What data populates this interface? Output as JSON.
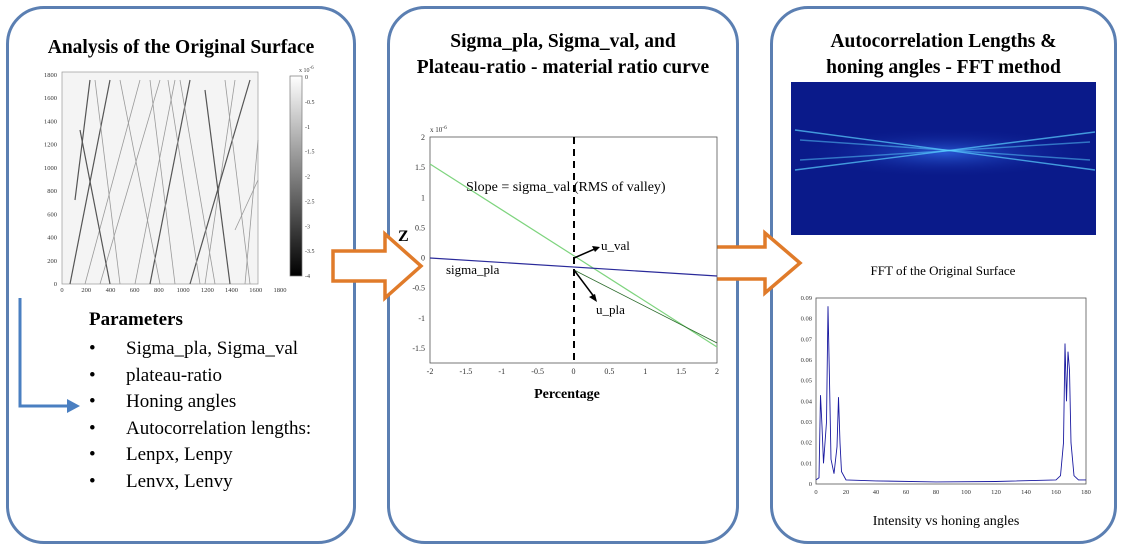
{
  "panel1": {
    "title": "Analysis of the Original Surface",
    "surface_map": {
      "y_ticks": [
        "1800",
        "1600",
        "1400",
        "1200",
        "1000",
        "800",
        "600",
        "400",
        "200",
        "0"
      ],
      "x_ticks": [
        "0",
        "200",
        "400",
        "600",
        "800",
        "1000",
        "1200",
        "1400",
        "1600",
        "1800"
      ],
      "colorbar_exponent": "x 10",
      "colorbar_exponent_power": "-6",
      "colorbar_ticks": [
        "0",
        "-0.5",
        "-1",
        "-1.5",
        "-2",
        "-2.5",
        "-3",
        "-3.5",
        "-4"
      ]
    },
    "parameters_title": "Parameters",
    "parameters": [
      "Sigma_pla, Sigma_val",
      "plateau-ratio",
      "Honing angles",
      "Autocorrelation lengths:",
      "Lenpx, Lenpy",
      "Lenvx, Lenvy"
    ]
  },
  "panel2": {
    "title_line1": "Sigma_pla, Sigma_val, and",
    "title_line2": "Plateau-ratio - material ratio curve",
    "plot": {
      "exponent": "x 10",
      "exponent_power": "-6",
      "y_ticks": [
        "2",
        "1.5",
        "1",
        "0.5",
        "0",
        "-0.5",
        "-1",
        "-1.5"
      ],
      "x_ticks": [
        "-2",
        "-1.5",
        "-1",
        "-0.5",
        "0",
        "0.5",
        "1",
        "1.5",
        "2"
      ],
      "y_axis_label": "Z",
      "x_axis_label": "Percentage",
      "annotation_slope": "Slope = sigma_val (RMS of valley)",
      "annotation_u_val": "u_val",
      "annotation_u_pla": "u_pla",
      "annotation_sigma_pla": "sigma_pla"
    }
  },
  "panel3": {
    "title_line1": "Autocorrelation Lengths &",
    "title_line2": "honing angles - FFT method",
    "fft_plot_title": "FFT of the Original Surface",
    "fft_plot_caption": "Intensity vs honing angles",
    "fft_y_ticks": [
      "0.09",
      "0.08",
      "0.07",
      "0.06",
      "0.05",
      "0.04",
      "0.03",
      "0.02",
      "0.01",
      "0"
    ],
    "fft_x_ticks": [
      "0",
      "20",
      "40",
      "60",
      "80",
      "100",
      "120",
      "140",
      "160",
      "180"
    ]
  },
  "colors": {
    "panel_border": "#5b7fb2",
    "flow_arrow": "#e07b2a",
    "connector_arrow": "#4a7fc1",
    "green_line": "#7ed47e",
    "blue_line": "#2a2a9a",
    "fft_background": "#0a1a8a"
  }
}
